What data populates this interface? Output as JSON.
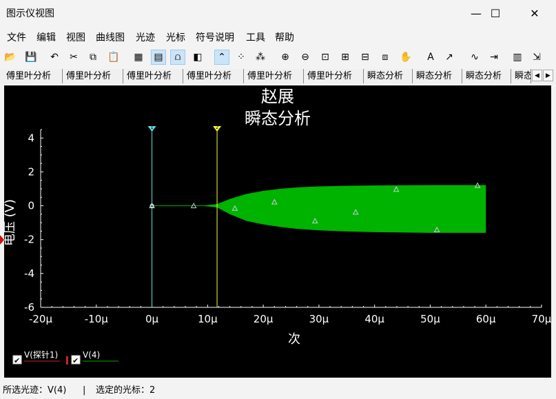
{
  "window": {
    "title": "图示仪视图",
    "controls": [
      "—",
      "☐",
      "✕"
    ]
  },
  "menu": [
    "文件",
    "编辑",
    "视图",
    "曲线图",
    "光迹",
    "光标",
    "符号说明",
    "工具",
    "帮助"
  ],
  "toolbar": {
    "buttons": [
      "open-icon",
      "save-icon",
      "undo-icon",
      "cut-icon",
      "copy-icon",
      "paste-icon",
      "grid-icon",
      "legend-icon",
      "selectmarks-icon",
      "overlay-icon",
      "show-cursors-icon",
      "data-points-icon",
      "marker-points-icon",
      "zoom-in-icon",
      "zoom-out-icon",
      "zoom-fit-icon",
      "zoom-x-icon",
      "zoom-y-icon",
      "zoom-area-icon",
      "pan-icon",
      "text-icon",
      "text-pointer-icon",
      "trace-props-icon",
      "export-icon",
      "copy-graph-icon",
      "send-to-icon"
    ],
    "glyphs": [
      "📂",
      "💾",
      "↶",
      "✂",
      "⧉",
      "📋",
      "▦",
      "▤",
      "⩍",
      "◧",
      "⌃",
      "⁘",
      "⁂",
      "⊕",
      "⊖",
      "⊡",
      "⊞",
      "⊟",
      "⧈",
      "✋",
      "A",
      "↗",
      "∿",
      "⇥",
      "▥",
      "⇲"
    ],
    "active": [
      7,
      8,
      10
    ]
  },
  "tabs": [
    "傅里叶分析",
    "傅里叶分析",
    "傅里叶分析",
    "傅里叶分析",
    "傅里叶分析",
    "傅里叶分析",
    "瞬态分析",
    "瞬态分析",
    "瞬态分析",
    "瞬态"
  ],
  "chart_data": {
    "type": "area",
    "title": "赵展",
    "subtitle": "瞬态分析",
    "xlabel": "次",
    "ylabel": "电压 (V)",
    "xlim": [
      -20,
      70
    ],
    "ylim": [
      -6,
      4.5
    ],
    "xticks": [
      "-20μ",
      "-10μ",
      "0μ",
      "10μ",
      "20μ",
      "30μ",
      "40μ",
      "50μ",
      "60μ",
      "70μ"
    ],
    "xtick_values": [
      -20,
      -10,
      0,
      10,
      20,
      30,
      40,
      50,
      60,
      70
    ],
    "yticks": [
      "4",
      "2",
      "0",
      "-2",
      "-4",
      "-6"
    ],
    "ytick_values": [
      4,
      2,
      0,
      -2,
      -4,
      -6
    ],
    "grid": false,
    "cursors": [
      {
        "label": "1",
        "x": 0,
        "color": "#66e0e0"
      },
      {
        "label": "2",
        "x": 11.7,
        "color": "#ffff33"
      }
    ],
    "series": [
      {
        "name": "V(4)",
        "color": "#00b300",
        "envelope": {
          "x": [
            0,
            9,
            11.7,
            14,
            17,
            20,
            23,
            26,
            30,
            35,
            40,
            45,
            50,
            55,
            60
          ],
          "upper": [
            0,
            0,
            0.1,
            0.4,
            0.7,
            0.88,
            1.0,
            1.08,
            1.14,
            1.18,
            1.2,
            1.21,
            1.22,
            1.22,
            1.22
          ],
          "lower": [
            0,
            0,
            -0.1,
            -0.5,
            -0.9,
            -1.1,
            -1.25,
            -1.36,
            -1.45,
            -1.52,
            -1.56,
            -1.58,
            -1.6,
            -1.6,
            -1.6
          ]
        },
        "markers": [
          [
            0,
            0
          ],
          [
            7.5,
            0
          ],
          [
            14.9,
            -0.15
          ],
          [
            22,
            0.22
          ],
          [
            29.3,
            -0.9
          ],
          [
            36.6,
            -0.38
          ],
          [
            43.9,
            0.97
          ],
          [
            51.2,
            -1.42
          ],
          [
            58.5,
            1.2
          ]
        ]
      },
      {
        "name": "V(探针1)",
        "color": "#cc2222"
      }
    ],
    "legend": [
      {
        "name": "V(探针1)",
        "color": "#cc2222",
        "checked": true
      },
      {
        "name": "V(4)",
        "color": "#00aa00",
        "checked": true
      }
    ]
  },
  "status": {
    "selected_trace": "所选光迹：V(4)",
    "separator": "|",
    "selected_cursor": "选定的光标：2"
  }
}
